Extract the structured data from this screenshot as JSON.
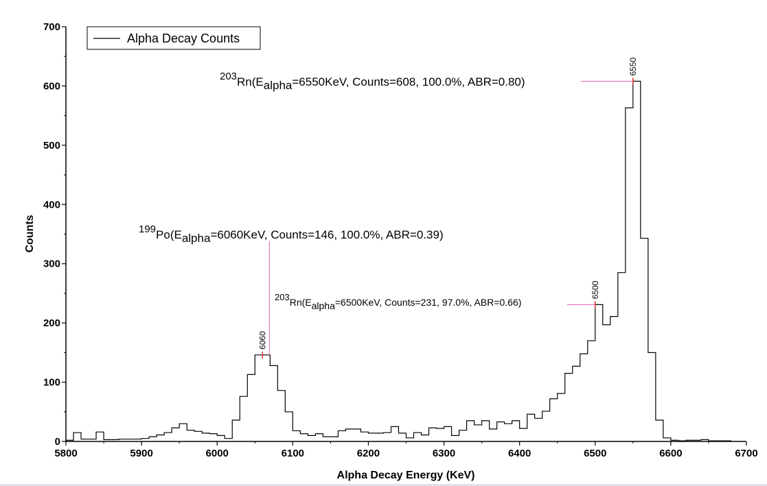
{
  "chart_data": {
    "type": "line",
    "xlabel": "Alpha Decay Energy (KeV)",
    "ylabel": "Counts",
    "xlim": [
      5800,
      6700
    ],
    "ylim": [
      0,
      700
    ],
    "xticks": [
      "5800",
      "5900",
      "6000",
      "6100",
      "6200",
      "6300",
      "6400",
      "6500",
      "6600",
      "6700"
    ],
    "yticks": [
      "0",
      "100",
      "200",
      "300",
      "400",
      "500",
      "600",
      "700"
    ],
    "legend": {
      "label": "Alpha Decay Counts",
      "position": "top-left"
    },
    "bin_start": 5805,
    "bin_width": 10,
    "series": [
      {
        "name": "Alpha Decay Counts",
        "values": [
          2,
          15,
          4,
          4,
          16,
          3,
          3,
          4,
          4,
          4,
          5,
          8,
          11,
          15,
          23,
          30,
          19,
          17,
          14,
          13,
          10,
          5,
          36,
          76,
          113,
          146,
          146,
          128,
          86,
          50,
          18,
          13,
          10,
          13,
          8,
          8,
          18,
          21,
          21,
          16,
          14,
          14,
          15,
          25,
          14,
          6,
          15,
          11,
          23,
          22,
          25,
          10,
          19,
          35,
          28,
          35,
          21,
          33,
          30,
          35,
          22,
          46,
          39,
          51,
          72,
          81,
          115,
          127,
          148,
          170,
          231,
          197,
          211,
          285,
          563,
          608,
          343,
          150,
          36,
          6,
          2,
          1,
          2,
          2,
          3,
          1,
          1,
          1
        ]
      }
    ],
    "peak_markers": [
      {
        "energy": 6060,
        "counts": 146,
        "label": "6060"
      },
      {
        "energy": 6500,
        "counts": 231,
        "label": "6500"
      },
      {
        "energy": 6550,
        "counts": 608,
        "label": "6550"
      }
    ],
    "annotations": [
      {
        "mass": "199",
        "element": "Po",
        "e_prefix": "(E",
        "e_sub": "alpha",
        "rest": "=6060KeV, Counts=146, 100.0%, ABR=0.39)"
      },
      {
        "mass": "203",
        "element": "Rn",
        "e_prefix": "(E",
        "e_sub": "alpha",
        "rest": "=6500KeV, Counts=231, 97.0%, ABR=0.66)"
      },
      {
        "mass": "203",
        "element": "Rn",
        "e_prefix": "(E",
        "e_sub": "alpha",
        "rest": "=6550KeV, Counts=608, 100.0%, ABR=0.80)"
      }
    ]
  }
}
